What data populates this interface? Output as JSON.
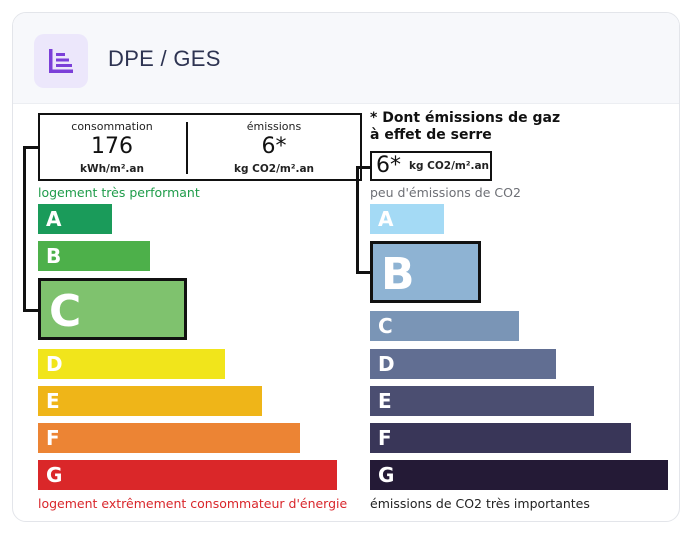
{
  "header": {
    "title": "DPE / GES",
    "icon": "list-chart-icon"
  },
  "dpe": {
    "consumption_label": "consommation",
    "consumption_value": "176",
    "consumption_unit": "kWh/m².an",
    "emissions_label": "émissions",
    "emissions_value": "6*",
    "emissions_unit": "kg CO2/m².an",
    "top_note": "logement très performant",
    "bottom_note": "logement extrêmement consommateur d'énergie",
    "current_class": "C",
    "classes": [
      {
        "letter": "A",
        "color": "#1a9b5a"
      },
      {
        "letter": "B",
        "color": "#4db04a"
      },
      {
        "letter": "C",
        "color": "#7fc26e"
      },
      {
        "letter": "D",
        "color": "#f1e51b"
      },
      {
        "letter": "E",
        "color": "#efb518"
      },
      {
        "letter": "F",
        "color": "#ec8434"
      },
      {
        "letter": "G",
        "color": "#da2729"
      }
    ]
  },
  "ges": {
    "title_line1": "* Dont émissions de gaz",
    "title_line2": "à effet de serre",
    "value": "6*",
    "unit": "kg CO2/m².an",
    "top_note": "peu d'émissions de CO2",
    "bottom_note": "émissions de CO2 très importantes",
    "current_class": "B",
    "classes": [
      {
        "letter": "A",
        "color": "#a4daf5"
      },
      {
        "letter": "B",
        "color": "#8eb3d3"
      },
      {
        "letter": "C",
        "color": "#7a95b6"
      },
      {
        "letter": "D",
        "color": "#616e92"
      },
      {
        "letter": "E",
        "color": "#4b4e71"
      },
      {
        "letter": "F",
        "color": "#393658"
      },
      {
        "letter": "G",
        "color": "#241a36"
      }
    ]
  }
}
